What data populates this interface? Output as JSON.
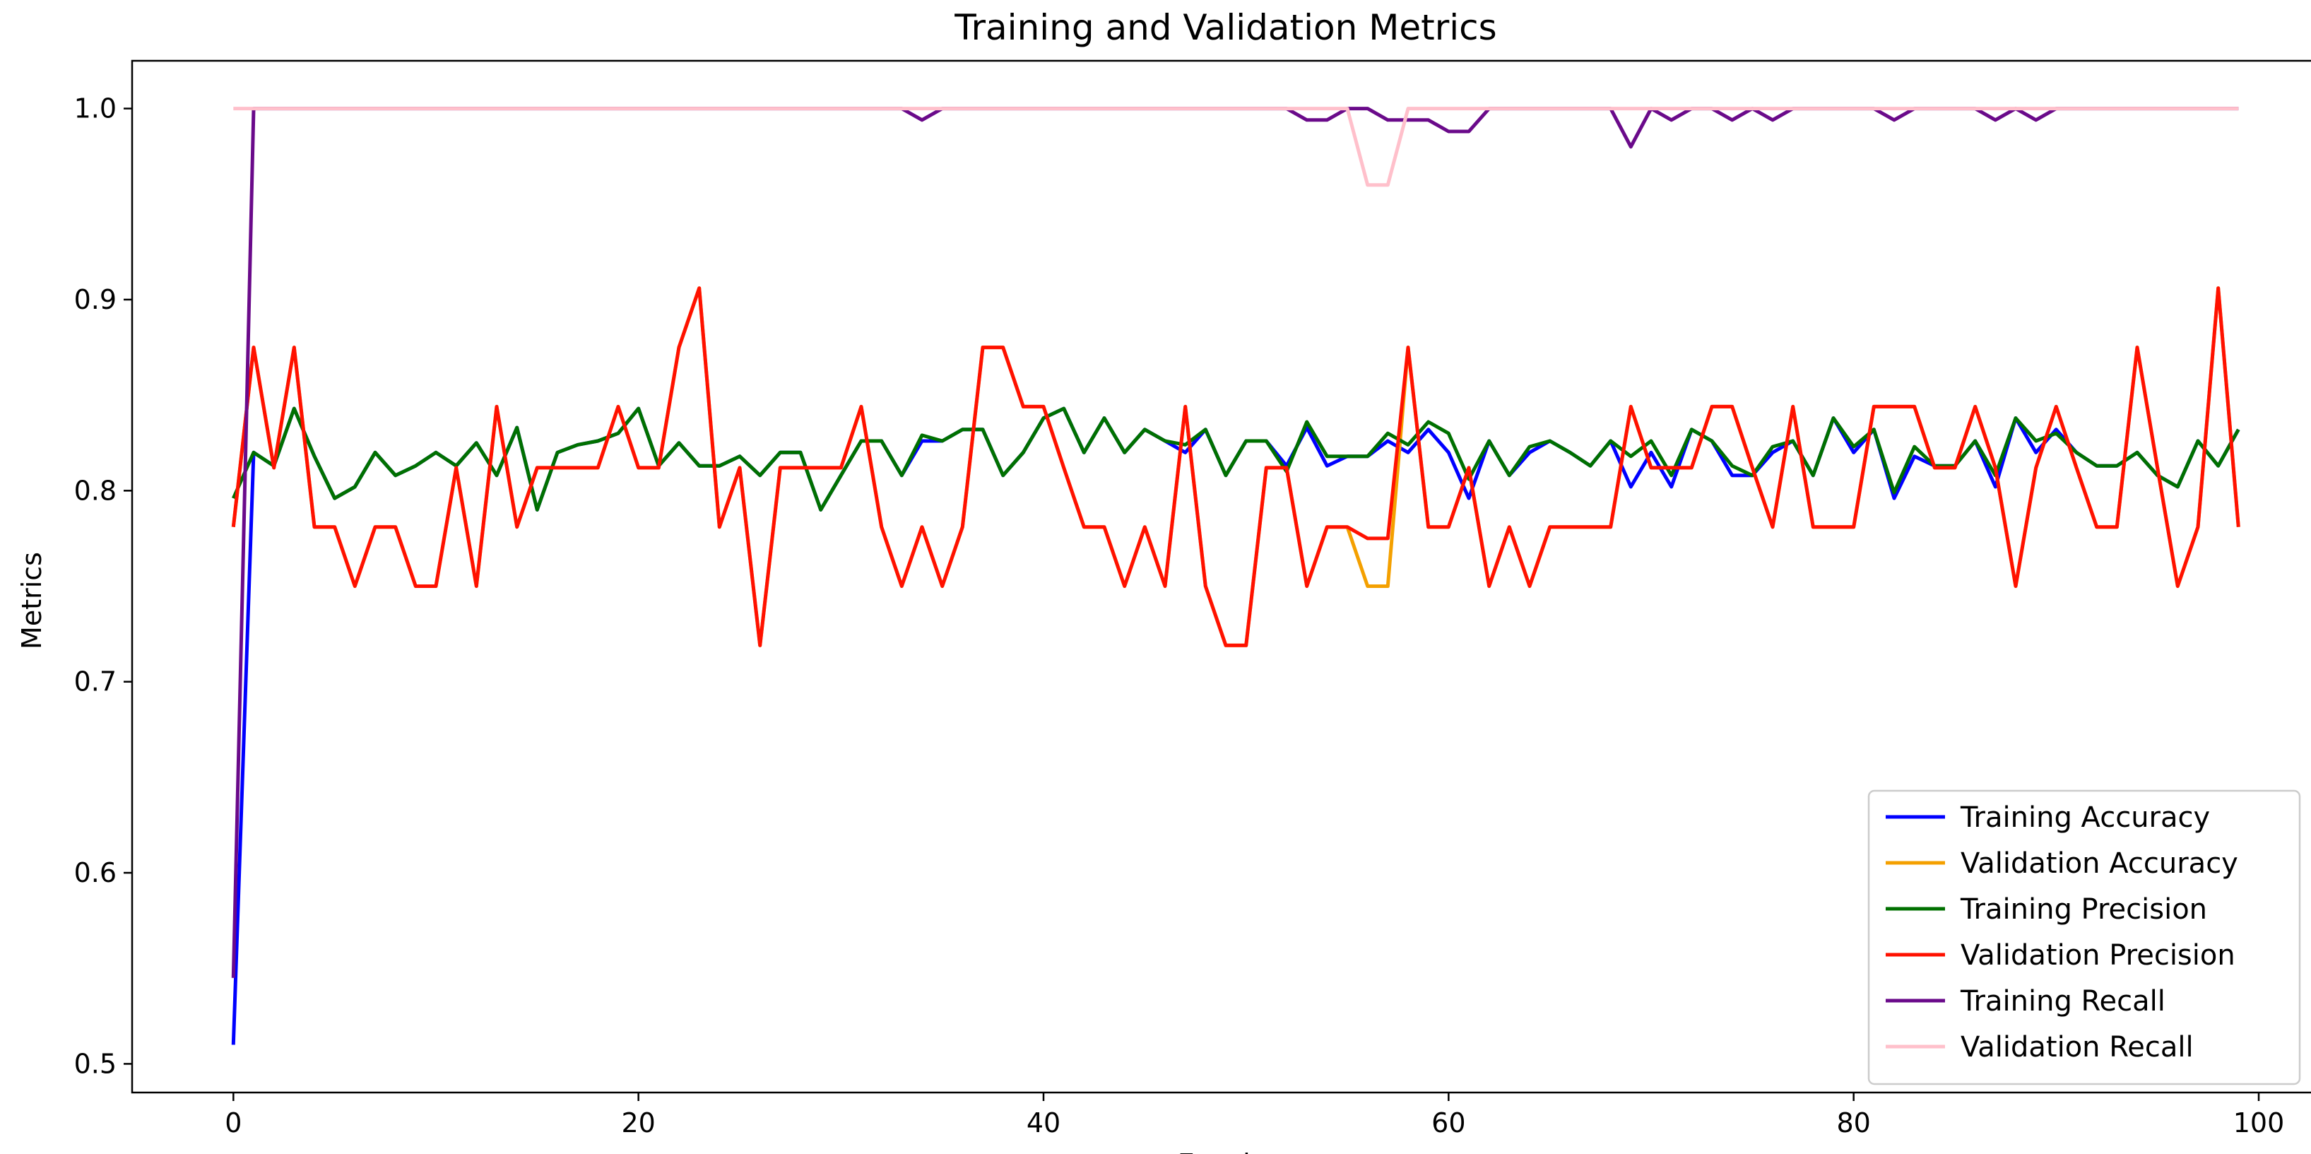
{
  "chart_data": {
    "type": "line",
    "title": "Training and Validation Metrics",
    "xlabel": "Epochs",
    "ylabel": "Metrics",
    "xlim": [
      -5,
      103
    ],
    "ylim": [
      0.485,
      1.025
    ],
    "xticks": [
      0,
      20,
      40,
      60,
      80,
      100
    ],
    "yticks": [
      0.5,
      0.6,
      0.7,
      0.8,
      0.9,
      1.0
    ],
    "ytick_labels": [
      "0.5",
      "0.6",
      "0.7",
      "0.8",
      "0.9",
      "1.0"
    ],
    "xtick_labels": [
      "0",
      "20",
      "40",
      "60",
      "80",
      "100"
    ],
    "grid": false,
    "legend_position": "lower-right",
    "series": [
      {
        "name": "Training Accuracy",
        "color": "#0000ff",
        "values": [
          0.51,
          0.82,
          0.813,
          0.843,
          0.818,
          0.796,
          0.802,
          0.82,
          0.808,
          0.813,
          0.82,
          0.813,
          0.825,
          0.808,
          0.833,
          0.79,
          0.82,
          0.824,
          0.826,
          0.83,
          0.843,
          0.813,
          0.825,
          0.813,
          0.813,
          0.818,
          0.808,
          0.82,
          0.82,
          0.79,
          0.808,
          0.826,
          0.826,
          0.808,
          0.826,
          0.826,
          0.832,
          0.832,
          0.808,
          0.82,
          0.838,
          0.843,
          0.82,
          0.838,
          0.82,
          0.832,
          0.826,
          0.82,
          0.832,
          0.808,
          0.826,
          0.826,
          0.813,
          0.833,
          0.813,
          0.818,
          0.818,
          0.826,
          0.82,
          0.832,
          0.82,
          0.796,
          0.826,
          0.808,
          0.82,
          0.826,
          0.82,
          0.813,
          0.826,
          0.802,
          0.82,
          0.802,
          0.832,
          0.826,
          0.808,
          0.808,
          0.82,
          0.826,
          0.808,
          0.838,
          0.82,
          0.832,
          0.796,
          0.818,
          0.813,
          0.813,
          0.826,
          0.802,
          0.838,
          0.82,
          0.832,
          0.82,
          0.813,
          0.813,
          0.82,
          0.808,
          0.802,
          0.826,
          0.813,
          0.832
        ]
      },
      {
        "name": "Validation Accuracy",
        "color": "#f4a000",
        "values": [
          0.781,
          0.875,
          0.812,
          0.875,
          0.781,
          0.781,
          0.75,
          0.781,
          0.781,
          0.75,
          0.75,
          0.812,
          0.75,
          0.844,
          0.781,
          0.812,
          0.812,
          0.812,
          0.812,
          0.844,
          0.812,
          0.812,
          0.875,
          0.906,
          0.781,
          0.812,
          0.719,
          0.812,
          0.812,
          0.812,
          0.812,
          0.844,
          0.781,
          0.75,
          0.781,
          0.75,
          0.781,
          0.875,
          0.875,
          0.844,
          0.844,
          0.812,
          0.781,
          0.781,
          0.75,
          0.781,
          0.75,
          0.844,
          0.75,
          0.719,
          0.719,
          0.812,
          0.812,
          0.75,
          0.781,
          0.781,
          0.75,
          0.75,
          0.875,
          0.781,
          0.781,
          0.812,
          0.75,
          0.781,
          0.75,
          0.781,
          0.781,
          0.781,
          0.781,
          0.844,
          0.812,
          0.812,
          0.812,
          0.844,
          0.844,
          0.812,
          0.781,
          0.844,
          0.781,
          0.781,
          0.781,
          0.844,
          0.844,
          0.844,
          0.812,
          0.812,
          0.844,
          0.812,
          0.75,
          0.812,
          0.844,
          0.812,
          0.781,
          0.781,
          0.875,
          0.812,
          0.75,
          0.781,
          0.906,
          0.781
        ]
      },
      {
        "name": "Training Precision",
        "color": "#007000",
        "values": [
          0.796,
          0.82,
          0.813,
          0.843,
          0.818,
          0.796,
          0.802,
          0.82,
          0.808,
          0.813,
          0.82,
          0.813,
          0.825,
          0.808,
          0.833,
          0.79,
          0.82,
          0.824,
          0.826,
          0.83,
          0.843,
          0.813,
          0.825,
          0.813,
          0.813,
          0.818,
          0.808,
          0.82,
          0.82,
          0.79,
          0.808,
          0.826,
          0.826,
          0.808,
          0.829,
          0.826,
          0.832,
          0.832,
          0.808,
          0.82,
          0.838,
          0.843,
          0.82,
          0.838,
          0.82,
          0.832,
          0.826,
          0.824,
          0.832,
          0.808,
          0.826,
          0.826,
          0.81,
          0.836,
          0.818,
          0.818,
          0.818,
          0.83,
          0.824,
          0.836,
          0.83,
          0.806,
          0.826,
          0.808,
          0.823,
          0.826,
          0.82,
          0.813,
          0.826,
          0.818,
          0.826,
          0.808,
          0.832,
          0.826,
          0.813,
          0.808,
          0.823,
          0.826,
          0.808,
          0.838,
          0.823,
          0.832,
          0.799,
          0.823,
          0.813,
          0.813,
          0.826,
          0.808,
          0.838,
          0.826,
          0.83,
          0.82,
          0.813,
          0.813,
          0.82,
          0.808,
          0.802,
          0.826,
          0.813,
          0.832
        ]
      },
      {
        "name": "Validation Precision",
        "color": "#ff1100",
        "values": [
          0.781,
          0.875,
          0.812,
          0.875,
          0.781,
          0.781,
          0.75,
          0.781,
          0.781,
          0.75,
          0.75,
          0.812,
          0.75,
          0.844,
          0.781,
          0.812,
          0.812,
          0.812,
          0.812,
          0.844,
          0.812,
          0.812,
          0.875,
          0.906,
          0.781,
          0.812,
          0.719,
          0.812,
          0.812,
          0.812,
          0.812,
          0.844,
          0.781,
          0.75,
          0.781,
          0.75,
          0.781,
          0.875,
          0.875,
          0.844,
          0.844,
          0.812,
          0.781,
          0.781,
          0.75,
          0.781,
          0.75,
          0.844,
          0.75,
          0.719,
          0.719,
          0.812,
          0.812,
          0.75,
          0.781,
          0.781,
          0.775,
          0.775,
          0.875,
          0.781,
          0.781,
          0.812,
          0.75,
          0.781,
          0.75,
          0.781,
          0.781,
          0.781,
          0.781,
          0.844,
          0.812,
          0.812,
          0.812,
          0.844,
          0.844,
          0.812,
          0.781,
          0.844,
          0.781,
          0.781,
          0.781,
          0.844,
          0.844,
          0.844,
          0.812,
          0.812,
          0.844,
          0.812,
          0.75,
          0.812,
          0.844,
          0.812,
          0.781,
          0.781,
          0.875,
          0.812,
          0.75,
          0.781,
          0.906,
          0.781
        ]
      },
      {
        "name": "Training Recall",
        "color": "#6a0a8a",
        "values": [
          0.545,
          1.0,
          1.0,
          1.0,
          1.0,
          1.0,
          1.0,
          1.0,
          1.0,
          1.0,
          1.0,
          1.0,
          1.0,
          1.0,
          1.0,
          1.0,
          1.0,
          1.0,
          1.0,
          1.0,
          1.0,
          1.0,
          1.0,
          1.0,
          1.0,
          1.0,
          1.0,
          1.0,
          1.0,
          1.0,
          1.0,
          1.0,
          1.0,
          1.0,
          0.994,
          1.0,
          1.0,
          1.0,
          1.0,
          1.0,
          1.0,
          1.0,
          1.0,
          1.0,
          1.0,
          1.0,
          1.0,
          1.0,
          1.0,
          1.0,
          1.0,
          1.0,
          1.0,
          0.994,
          0.994,
          1.0,
          1.0,
          0.994,
          0.994,
          0.994,
          0.988,
          0.988,
          1.0,
          1.0,
          1.0,
          1.0,
          1.0,
          1.0,
          1.0,
          0.98,
          1.0,
          0.994,
          1.0,
          1.0,
          0.994,
          1.0,
          0.994,
          1.0,
          1.0,
          1.0,
          1.0,
          1.0,
          0.994,
          1.0,
          1.0,
          1.0,
          1.0,
          0.994,
          1.0,
          0.994,
          1.0,
          1.0,
          1.0,
          1.0,
          1.0,
          1.0,
          1.0,
          1.0,
          1.0,
          1.0
        ]
      },
      {
        "name": "Validation Recall",
        "color": "#ffc0cb",
        "values": [
          1.0,
          1.0,
          1.0,
          1.0,
          1.0,
          1.0,
          1.0,
          1.0,
          1.0,
          1.0,
          1.0,
          1.0,
          1.0,
          1.0,
          1.0,
          1.0,
          1.0,
          1.0,
          1.0,
          1.0,
          1.0,
          1.0,
          1.0,
          1.0,
          1.0,
          1.0,
          1.0,
          1.0,
          1.0,
          1.0,
          1.0,
          1.0,
          1.0,
          1.0,
          1.0,
          1.0,
          1.0,
          1.0,
          1.0,
          1.0,
          1.0,
          1.0,
          1.0,
          1.0,
          1.0,
          1.0,
          1.0,
          1.0,
          1.0,
          1.0,
          1.0,
          1.0,
          1.0,
          1.0,
          1.0,
          1.0,
          0.96,
          0.96,
          1.0,
          1.0,
          1.0,
          1.0,
          1.0,
          1.0,
          1.0,
          1.0,
          1.0,
          1.0,
          1.0,
          1.0,
          1.0,
          1.0,
          1.0,
          1.0,
          1.0,
          1.0,
          1.0,
          1.0,
          1.0,
          1.0,
          1.0,
          1.0,
          1.0,
          1.0,
          1.0,
          1.0,
          1.0,
          1.0,
          1.0,
          1.0,
          1.0,
          1.0,
          1.0,
          1.0,
          1.0,
          1.0,
          1.0,
          1.0,
          1.0,
          1.0
        ]
      }
    ]
  }
}
